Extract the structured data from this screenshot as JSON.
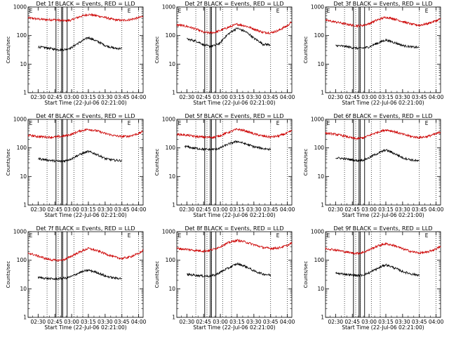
{
  "figure": {
    "xlabel": "Start Time (22-Jul-06 02:21:00)",
    "ylabel": "Counts/sec",
    "panel_marker": "E"
  },
  "chart_data": [
    {
      "type": "line",
      "title": "Det 1f BLACK = Events, RED = LLD",
      "yscale": "log",
      "ylim": [
        1,
        1000
      ],
      "xlim_min": [
        21,
        124
      ],
      "x_tick_labels": [
        "02:30",
        "02:45",
        "03:00",
        "03:15",
        "03:30",
        "03:45",
        "04:00"
      ],
      "x_ticks_min": [
        30,
        45,
        60,
        75,
        90,
        105,
        120
      ],
      "vlines_dotted_min": [
        38,
        48,
        52,
        62,
        70,
        105,
        120
      ],
      "vlines_solid_min": [
        46,
        51,
        52,
        56
      ],
      "series": [
        {
          "color": "#cc0000",
          "x": [
            21,
            30,
            38,
            45,
            50,
            55,
            60,
            68,
            75,
            82,
            90,
            98,
            105,
            112,
            120,
            124
          ],
          "y": [
            420,
            380,
            360,
            360,
            340,
            330,
            350,
            470,
            550,
            500,
            430,
            360,
            340,
            360,
            420,
            470
          ]
        },
        {
          "color": "#000000",
          "x": [
            30,
            38,
            45,
            50,
            55,
            60,
            68,
            75,
            82,
            90,
            98,
            105
          ],
          "y": [
            40,
            37,
            33,
            32,
            33,
            38,
            60,
            85,
            65,
            45,
            36,
            35
          ]
        }
      ]
    },
    {
      "type": "line",
      "title": "Det 2f BLACK = Events, RED = LLD",
      "yscale": "log",
      "ylim": [
        1,
        1000
      ],
      "xlim_min": [
        21,
        124
      ],
      "x_tick_labels": [
        "02:30",
        "02:45",
        "03:00",
        "03:15",
        "03:30",
        "03:45",
        "04:00"
      ],
      "x_ticks_min": [
        30,
        45,
        60,
        75,
        90,
        105,
        120
      ],
      "vlines_dotted_min": [
        38,
        48,
        52,
        62,
        70,
        105,
        120
      ],
      "vlines_solid_min": [
        46,
        51,
        52,
        56
      ],
      "series": [
        {
          "color": "#cc0000",
          "x": [
            21,
            30,
            38,
            45,
            50,
            55,
            60,
            68,
            75,
            82,
            90,
            98,
            105,
            112,
            120,
            124
          ],
          "y": [
            240,
            210,
            170,
            130,
            125,
            130,
            150,
            200,
            250,
            220,
            170,
            130,
            125,
            150,
            220,
            300
          ]
        },
        {
          "color": "#000000",
          "x": [
            30,
            38,
            45,
            50,
            55,
            60,
            68,
            75,
            82,
            90,
            98,
            105
          ],
          "y": [
            75,
            65,
            48,
            42,
            45,
            55,
            120,
            180,
            140,
            80,
            50,
            48
          ]
        }
      ]
    },
    {
      "type": "line",
      "title": "Det 3f BLACK = Events, RED = LLD",
      "yscale": "log",
      "ylim": [
        1,
        1000
      ],
      "xlim_min": [
        21,
        124
      ],
      "x_tick_labels": [
        "02:30",
        "02:45",
        "03:00",
        "03:15",
        "03:30",
        "03:45",
        "04:00"
      ],
      "x_ticks_min": [
        30,
        45,
        60,
        75,
        90,
        105,
        120
      ],
      "vlines_dotted_min": [
        38,
        48,
        52,
        62,
        70,
        105,
        120
      ],
      "vlines_solid_min": [
        46,
        51,
        52,
        56
      ],
      "series": [
        {
          "color": "#cc0000",
          "x": [
            21,
            30,
            38,
            45,
            50,
            55,
            60,
            68,
            75,
            82,
            90,
            98,
            105,
            112,
            120,
            124
          ],
          "y": [
            340,
            300,
            260,
            230,
            220,
            230,
            260,
            360,
            440,
            390,
            310,
            250,
            230,
            260,
            330,
            380
          ]
        },
        {
          "color": "#000000",
          "x": [
            30,
            38,
            45,
            50,
            55,
            60,
            68,
            75,
            82,
            90,
            98,
            105
          ],
          "y": [
            45,
            42,
            38,
            36,
            37,
            40,
            55,
            70,
            58,
            45,
            40,
            38
          ]
        }
      ]
    },
    {
      "type": "line",
      "title": "Det 4f BLACK = Events, RED = LLD",
      "yscale": "log",
      "ylim": [
        1,
        1000
      ],
      "xlim_min": [
        21,
        124
      ],
      "x_tick_labels": [
        "02:30",
        "02:45",
        "03:00",
        "03:15",
        "03:30",
        "03:45",
        "04:00"
      ],
      "x_ticks_min": [
        30,
        45,
        60,
        75,
        90,
        105,
        120
      ],
      "vlines_dotted_min": [
        38,
        48,
        52,
        62,
        70,
        105,
        120
      ],
      "vlines_solid_min": [
        46,
        51,
        52,
        56
      ],
      "series": [
        {
          "color": "#cc0000",
          "x": [
            21,
            30,
            38,
            45,
            50,
            55,
            60,
            68,
            75,
            82,
            90,
            98,
            105,
            112,
            120,
            124
          ],
          "y": [
            280,
            250,
            240,
            240,
            250,
            270,
            300,
            400,
            450,
            400,
            320,
            270,
            250,
            260,
            320,
            380
          ]
        },
        {
          "color": "#000000",
          "x": [
            30,
            38,
            45,
            50,
            55,
            60,
            68,
            75,
            82,
            90,
            98,
            105
          ],
          "y": [
            42,
            38,
            35,
            34,
            36,
            42,
            60,
            75,
            60,
            42,
            37,
            36
          ]
        }
      ]
    },
    {
      "type": "line",
      "title": "Det 5f BLACK = Events, RED = LLD",
      "yscale": "log",
      "ylim": [
        1,
        1000
      ],
      "xlim_min": [
        21,
        124
      ],
      "x_tick_labels": [
        "02:30",
        "02:45",
        "03:00",
        "03:15",
        "03:30",
        "03:45",
        "04:00"
      ],
      "x_ticks_min": [
        30,
        45,
        60,
        75,
        90,
        105,
        120
      ],
      "vlines_dotted_min": [
        38,
        48,
        52,
        62,
        70,
        105,
        120
      ],
      "vlines_solid_min": [
        46,
        51,
        52,
        56
      ],
      "series": [
        {
          "color": "#cc0000",
          "x": [
            21,
            30,
            38,
            45,
            50,
            55,
            60,
            68,
            75,
            82,
            90,
            98,
            105,
            112,
            120,
            124
          ],
          "y": [
            300,
            280,
            250,
            240,
            235,
            240,
            270,
            360,
            450,
            400,
            310,
            260,
            240,
            260,
            330,
            400
          ]
        },
        {
          "color": "#000000",
          "x": [
            28,
            35,
            45,
            50,
            55,
            60,
            68,
            75,
            82,
            90,
            98,
            105
          ],
          "y": [
            115,
            100,
            90,
            88,
            90,
            100,
            140,
            170,
            140,
            110,
            95,
            90
          ]
        }
      ]
    },
    {
      "type": "line",
      "title": "Det 6f BLACK = Events, RED = LLD",
      "yscale": "log",
      "ylim": [
        1,
        1000
      ],
      "xlim_min": [
        21,
        124
      ],
      "x_tick_labels": [
        "02:30",
        "02:45",
        "03:00",
        "03:15",
        "03:30",
        "03:45",
        "04:00"
      ],
      "x_ticks_min": [
        30,
        45,
        60,
        75,
        90,
        105,
        120
      ],
      "vlines_dotted_min": [
        38,
        48,
        52,
        62,
        70,
        105,
        120
      ],
      "vlines_solid_min": [
        46,
        51,
        52,
        56
      ],
      "series": [
        {
          "color": "#cc0000",
          "x": [
            21,
            30,
            38,
            45,
            50,
            55,
            60,
            68,
            75,
            82,
            90,
            98,
            105,
            112,
            120,
            124
          ],
          "y": [
            330,
            300,
            260,
            220,
            210,
            230,
            270,
            360,
            430,
            380,
            300,
            250,
            230,
            250,
            310,
            360
          ]
        },
        {
          "color": "#000000",
          "x": [
            30,
            38,
            45,
            50,
            55,
            60,
            68,
            75,
            82,
            90,
            98,
            105
          ],
          "y": [
            45,
            42,
            38,
            36,
            38,
            45,
            65,
            85,
            65,
            45,
            38,
            34
          ]
        }
      ]
    },
    {
      "type": "line",
      "title": "Det 7f BLACK = Events, RED = LLD",
      "yscale": "log",
      "ylim": [
        1,
        1000
      ],
      "xlim_min": [
        21,
        124
      ],
      "x_tick_labels": [
        "02:30",
        "02:45",
        "03:00",
        "03:15",
        "03:30",
        "03:45",
        "04:00"
      ],
      "x_ticks_min": [
        30,
        45,
        60,
        75,
        90,
        105,
        120
      ],
      "vlines_dotted_min": [
        38,
        48,
        52,
        62,
        70,
        105,
        120
      ],
      "vlines_solid_min": [
        46,
        51,
        52,
        56
      ],
      "series": [
        {
          "color": "#cc0000",
          "x": [
            21,
            30,
            38,
            45,
            50,
            55,
            60,
            68,
            75,
            82,
            90,
            98,
            105,
            112,
            120,
            124
          ],
          "y": [
            180,
            140,
            110,
            100,
            100,
            110,
            140,
            200,
            260,
            220,
            170,
            130,
            115,
            130,
            170,
            220
          ]
        },
        {
          "color": "#000000",
          "x": [
            30,
            38,
            45,
            50,
            55,
            60,
            68,
            75,
            82,
            90,
            98,
            105
          ],
          "y": [
            25,
            23,
            22,
            23,
            24,
            27,
            38,
            45,
            38,
            28,
            24,
            23
          ]
        }
      ]
    },
    {
      "type": "line",
      "title": "Det 8f BLACK = Events, RED = LLD",
      "yscale": "log",
      "ylim": [
        1,
        1000
      ],
      "xlim_min": [
        21,
        124
      ],
      "x_tick_labels": [
        "02:30",
        "02:45",
        "03:00",
        "03:15",
        "03:30",
        "03:45",
        "04:00"
      ],
      "x_ticks_min": [
        30,
        45,
        60,
        75,
        90,
        105,
        120
      ],
      "vlines_dotted_min": [
        38,
        48,
        52,
        62,
        70,
        105,
        120
      ],
      "vlines_solid_min": [
        46,
        51,
        52,
        56
      ],
      "series": [
        {
          "color": "#cc0000",
          "x": [
            21,
            30,
            38,
            45,
            50,
            55,
            60,
            68,
            75,
            82,
            90,
            98,
            105,
            112,
            120,
            124
          ],
          "y": [
            260,
            240,
            220,
            210,
            220,
            250,
            300,
            420,
            500,
            440,
            350,
            280,
            260,
            270,
            330,
            400
          ]
        },
        {
          "color": "#000000",
          "x": [
            30,
            38,
            45,
            50,
            55,
            60,
            68,
            75,
            82,
            90,
            98,
            105
          ],
          "y": [
            32,
            30,
            28,
            28,
            30,
            38,
            55,
            75,
            62,
            42,
            33,
            30
          ]
        }
      ]
    },
    {
      "type": "line",
      "title": "Det 9f BLACK = Events, RED = LLD",
      "yscale": "log",
      "ylim": [
        1,
        1000
      ],
      "xlim_min": [
        21,
        124
      ],
      "x_tick_labels": [
        "02:30",
        "02:45",
        "03:00",
        "03:15",
        "03:30",
        "03:45",
        "04:00"
      ],
      "x_ticks_min": [
        30,
        45,
        60,
        75,
        90,
        105,
        120
      ],
      "vlines_dotted_min": [
        38,
        48,
        52,
        62,
        70,
        105,
        120
      ],
      "vlines_solid_min": [
        46,
        51,
        52,
        56
      ],
      "series": [
        {
          "color": "#cc0000",
          "x": [
            21,
            30,
            38,
            45,
            50,
            55,
            60,
            68,
            75,
            82,
            90,
            98,
            105,
            112,
            120,
            124
          ],
          "y": [
            260,
            230,
            200,
            180,
            175,
            190,
            230,
            320,
            380,
            330,
            250,
            200,
            180,
            190,
            250,
            300
          ]
        },
        {
          "color": "#000000",
          "x": [
            30,
            38,
            45,
            50,
            55,
            60,
            68,
            75,
            82,
            90,
            98,
            105
          ],
          "y": [
            35,
            33,
            30,
            29,
            31,
            36,
            52,
            70,
            55,
            40,
            33,
            30
          ]
        }
      ]
    }
  ]
}
